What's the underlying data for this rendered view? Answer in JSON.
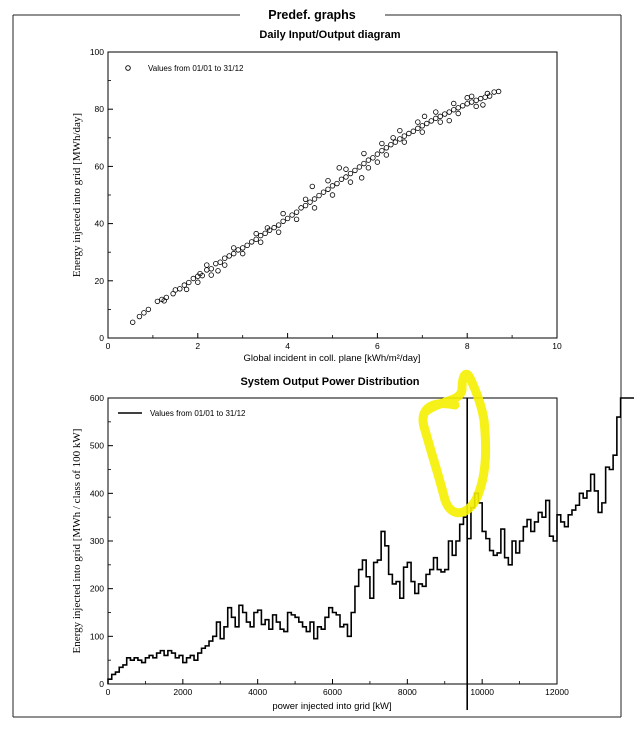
{
  "page": {
    "section_title": "Predef. graphs"
  },
  "chart_data": [
    {
      "type": "scatter",
      "title": "Daily Input/Output diagram",
      "xlabel": "Global incident in coll. plane [kWh/m²/day]",
      "ylabel": "Energy injected into grid [MWh/day]",
      "xlim": [
        0,
        10
      ],
      "ylim": [
        0,
        100
      ],
      "xticks": [
        0,
        2,
        4,
        6,
        8,
        10
      ],
      "yticks": [
        0,
        20,
        40,
        60,
        80,
        100
      ],
      "legend": "Values from 01/01 to 31/12",
      "legend_position": "top-left",
      "marker": "open-circle",
      "grid": false,
      "points": [
        [
          0.55,
          5.5
        ],
        [
          0.7,
          7.5
        ],
        [
          0.8,
          8.8
        ],
        [
          0.9,
          10.0
        ],
        [
          1.1,
          12.8
        ],
        [
          1.2,
          13.5
        ],
        [
          1.3,
          14.2
        ],
        [
          1.45,
          15.5
        ],
        [
          1.5,
          16.8
        ],
        [
          1.6,
          17.2
        ],
        [
          1.7,
          18.5
        ],
        [
          1.8,
          19.4
        ],
        [
          1.9,
          20.8
        ],
        [
          2.0,
          21.6
        ],
        [
          2.05,
          22.5
        ],
        [
          2.1,
          21.8
        ],
        [
          2.2,
          23.8
        ],
        [
          2.3,
          24.2
        ],
        [
          2.4,
          26.0
        ],
        [
          2.5,
          26.5
        ],
        [
          2.6,
          27.9
        ],
        [
          2.7,
          28.7
        ],
        [
          2.8,
          29.5
        ],
        [
          2.9,
          30.8
        ],
        [
          3.0,
          31.5
        ],
        [
          3.1,
          32.4
        ],
        [
          3.2,
          33.6
        ],
        [
          3.3,
          34.5
        ],
        [
          3.4,
          35.8
        ],
        [
          3.5,
          36.6
        ],
        [
          3.6,
          37.7
        ],
        [
          3.7,
          38.6
        ],
        [
          3.8,
          39.5
        ],
        [
          3.9,
          40.8
        ],
        [
          4.0,
          41.8
        ],
        [
          4.1,
          43.0
        ],
        [
          4.2,
          44.0
        ],
        [
          4.3,
          45.5
        ],
        [
          4.4,
          46.3
        ],
        [
          4.5,
          47.5
        ],
        [
          4.6,
          48.6
        ],
        [
          4.7,
          49.8
        ],
        [
          4.8,
          51.0
        ],
        [
          4.9,
          52.0
        ],
        [
          5.0,
          53.2
        ],
        [
          5.1,
          54.0
        ],
        [
          5.2,
          55.5
        ],
        [
          5.3,
          56.3
        ],
        [
          5.4,
          57.5
        ],
        [
          5.5,
          58.6
        ],
        [
          5.6,
          59.8
        ],
        [
          5.7,
          61.0
        ],
        [
          5.8,
          62.2
        ],
        [
          5.9,
          63.0
        ],
        [
          6.0,
          64.3
        ],
        [
          6.1,
          65.5
        ],
        [
          6.2,
          66.5
        ],
        [
          6.3,
          67.6
        ],
        [
          6.4,
          68.5
        ],
        [
          6.5,
          69.6
        ],
        [
          6.6,
          70.6
        ],
        [
          6.7,
          71.5
        ],
        [
          6.8,
          72.3
        ],
        [
          6.9,
          73.3
        ],
        [
          7.0,
          74.2
        ],
        [
          7.1,
          75.0
        ],
        [
          7.2,
          75.9
        ],
        [
          7.3,
          76.8
        ],
        [
          7.4,
          77.5
        ],
        [
          7.5,
          78.3
        ],
        [
          7.6,
          79.0
        ],
        [
          7.7,
          79.8
        ],
        [
          7.8,
          80.5
        ],
        [
          7.9,
          81.2
        ],
        [
          8.0,
          81.9
        ],
        [
          8.1,
          82.5
        ],
        [
          8.2,
          83.1
        ],
        [
          8.3,
          83.7
        ],
        [
          8.4,
          84.2
        ],
        [
          8.5,
          84.6
        ],
        [
          8.6,
          86.0
        ],
        [
          8.7,
          86.2
        ],
        [
          2.0,
          19.5
        ],
        [
          2.3,
          22.0
        ],
        [
          2.6,
          25.5
        ],
        [
          3.0,
          29.5
        ],
        [
          3.4,
          33.5
        ],
        [
          3.8,
          37.0
        ],
        [
          4.2,
          41.5
        ],
        [
          4.6,
          45.5
        ],
        [
          5.0,
          50.0
        ],
        [
          5.4,
          54.5
        ],
        [
          5.8,
          59.5
        ],
        [
          6.2,
          64.0
        ],
        [
          6.6,
          68.5
        ],
        [
          7.0,
          72.0
        ],
        [
          7.4,
          75.5
        ],
        [
          7.8,
          78.5
        ],
        [
          8.2,
          81.0
        ],
        [
          2.2,
          25.5
        ],
        [
          2.8,
          31.5
        ],
        [
          3.3,
          36.5
        ],
        [
          3.9,
          43.5
        ],
        [
          4.4,
          48.5
        ],
        [
          4.9,
          55.0
        ],
        [
          5.3,
          59.0
        ],
        [
          5.7,
          64.5
        ],
        [
          6.1,
          68.0
        ],
        [
          6.5,
          72.5
        ],
        [
          6.9,
          75.5
        ],
        [
          7.3,
          79.0
        ],
        [
          7.7,
          82.0
        ],
        [
          8.1,
          84.5
        ],
        [
          4.55,
          53.0
        ],
        [
          5.15,
          59.5
        ],
        [
          5.65,
          56.0
        ],
        [
          6.0,
          61.5
        ],
        [
          6.35,
          70.0
        ],
        [
          7.05,
          77.5
        ],
        [
          7.6,
          76.0
        ],
        [
          8.0,
          84.0
        ],
        [
          8.35,
          81.5
        ],
        [
          8.45,
          85.5
        ],
        [
          3.55,
          38.5
        ],
        [
          2.45,
          23.5
        ],
        [
          1.75,
          17.0
        ],
        [
          1.25,
          13.0
        ]
      ]
    },
    {
      "type": "histogram-step",
      "title": "System Output Power Distribution",
      "xlabel": "power injected into grid [kW]",
      "ylabel": "Energy injected into grid [MWh / class of 100 kW]",
      "xlim": [
        0,
        12000
      ],
      "ylim": [
        0,
        600
      ],
      "xticks": [
        0,
        2000,
        4000,
        6000,
        8000,
        10000,
        12000
      ],
      "yticks": [
        0,
        100,
        200,
        300,
        400,
        500,
        600
      ],
      "legend": "Values from 01/01 to 31/12",
      "legend_position": "top-left",
      "grid": false,
      "bin_width": 100,
      "bin_start": 0,
      "values": [
        10,
        20,
        25,
        35,
        40,
        55,
        50,
        55,
        50,
        45,
        55,
        60,
        55,
        65,
        70,
        60,
        70,
        65,
        55,
        60,
        45,
        55,
        60,
        50,
        65,
        75,
        80,
        90,
        100,
        130,
        95,
        120,
        160,
        140,
        120,
        165,
        150,
        130,
        120,
        150,
        155,
        125,
        135,
        115,
        145,
        130,
        115,
        110,
        150,
        145,
        140,
        130,
        120,
        110,
        130,
        95,
        120,
        115,
        140,
        160,
        150,
        145,
        120,
        125,
        100,
        150,
        205,
        240,
        260,
        225,
        180,
        255,
        260,
        320,
        290,
        230,
        210,
        215,
        180,
        245,
        255,
        215,
        190,
        210,
        205,
        230,
        240,
        265,
        240,
        235,
        240,
        300,
        270,
        300,
        335,
        350,
        305,
        370,
        400,
        380,
        320,
        305,
        280,
        270,
        275,
        325,
        265,
        250,
        300,
        275,
        300,
        330,
        345,
        320,
        340,
        360,
        350,
        385,
        310,
        300,
        355,
        340,
        330,
        355,
        365,
        375,
        400,
        390,
        405,
        440,
        405,
        360,
        380,
        455,
        450,
        480,
        560,
        610,
        600,
        610,
        610,
        580,
        610,
        600,
        610,
        590,
        610,
        590,
        600,
        600
      ],
      "marker_line_x": 9600,
      "highlight": "yellow annotation around peak near 9000–9700 kW"
    }
  ]
}
